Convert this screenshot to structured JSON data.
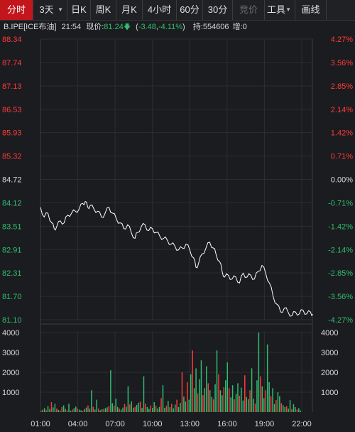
{
  "toolbar": {
    "buttons": [
      {
        "label": "分时",
        "state": "active"
      },
      {
        "label": "3天",
        "state": "dropdown"
      },
      {
        "label": "日K",
        "state": "normal"
      },
      {
        "label": "周K",
        "state": "normal"
      },
      {
        "label": "月K",
        "state": "normal"
      },
      {
        "label": "4小时",
        "state": "normal"
      },
      {
        "label": "60分",
        "state": "normal"
      },
      {
        "label": "30分",
        "state": "normal"
      },
      {
        "label": "竞价",
        "state": "disabled"
      },
      {
        "label": "工具",
        "state": "dropdown"
      },
      {
        "label": "画线",
        "state": "normal"
      }
    ]
  },
  "info": {
    "symbol": "B.IPE[ICE布油]",
    "time": "21:54",
    "price_label": "现价:",
    "price": "81.24",
    "arrow": "🡇",
    "change_open": "(",
    "change": "-3.48",
    "sep": ", ",
    "change_pct": "-4.11%",
    "change_close": ")",
    "hold_label": "持:554606",
    "add_label": "增:0"
  },
  "colors": {
    "background": "#1b1c1f",
    "up": "#ff3a3a",
    "down": "#2fbf71",
    "line": "#ffffff",
    "grid": "#2b2d31"
  },
  "chart_data": {
    "type": "line",
    "price_ticks": [
      "88.34",
      "87.74",
      "87.13",
      "86.53",
      "85.93",
      "85.32",
      "84.72",
      "84.12",
      "83.51",
      "82.91",
      "82.31",
      "81.70",
      "81.10"
    ],
    "pct_ticks": [
      "4.27%",
      "3.56%",
      "2.85%",
      "2.14%",
      "1.42%",
      "0.71%",
      "0.00%",
      "-0.71%",
      "-1.42%",
      "-2.14%",
      "-2.85%",
      "-3.56%",
      "-4.27%"
    ],
    "ylim": [
      81.1,
      88.34
    ],
    "volume_ticks": [
      "4000",
      "3000",
      "2000",
      "1000"
    ],
    "volume_ylim": [
      0,
      4000
    ],
    "x_ticks": [
      "01:00",
      "04:00",
      "07:00",
      "10:00",
      "13:00",
      "16:00",
      "19:00",
      "22:00"
    ],
    "series": [
      {
        "points": [
          [
            0,
            84.0
          ],
          [
            0.3,
            83.75
          ],
          [
            0.6,
            83.85
          ],
          [
            0.9,
            83.6
          ],
          [
            1.1,
            83.45
          ],
          [
            1.3,
            83.5
          ],
          [
            1.6,
            83.65
          ],
          [
            1.9,
            83.6
          ],
          [
            2.2,
            83.8
          ],
          [
            2.5,
            83.85
          ],
          [
            2.8,
            83.9
          ],
          [
            3.1,
            83.95
          ],
          [
            3.4,
            84.1
          ],
          [
            3.6,
            84.15
          ],
          [
            3.8,
            84.0
          ],
          [
            4.0,
            84.05
          ],
          [
            4.3,
            83.95
          ],
          [
            4.6,
            83.9
          ],
          [
            4.9,
            83.75
          ],
          [
            5.2,
            83.85
          ],
          [
            5.5,
            84.0
          ],
          [
            5.8,
            83.85
          ],
          [
            6.1,
            83.7
          ],
          [
            6.4,
            83.6
          ],
          [
            6.7,
            83.45
          ],
          [
            7.0,
            83.55
          ],
          [
            7.3,
            83.35
          ],
          [
            7.6,
            83.2
          ],
          [
            7.8,
            83.35
          ],
          [
            8.1,
            83.5
          ],
          [
            8.4,
            83.55
          ],
          [
            8.7,
            83.4
          ],
          [
            9.0,
            83.45
          ],
          [
            9.3,
            83.35
          ],
          [
            9.6,
            83.25
          ],
          [
            9.9,
            83.2
          ],
          [
            10.2,
            83.15
          ],
          [
            10.5,
            83.05
          ],
          [
            10.8,
            83.0
          ],
          [
            11.1,
            82.9
          ],
          [
            11.4,
            82.95
          ],
          [
            11.7,
            83.05
          ],
          [
            12.0,
            82.9
          ],
          [
            12.3,
            82.7
          ],
          [
            12.5,
            82.45
          ],
          [
            12.7,
            82.55
          ],
          [
            13.0,
            82.8
          ],
          [
            13.3,
            82.95
          ],
          [
            13.6,
            83.1
          ],
          [
            13.9,
            82.95
          ],
          [
            14.1,
            82.8
          ],
          [
            14.4,
            82.6
          ],
          [
            14.6,
            82.35
          ],
          [
            14.8,
            82.2
          ],
          [
            15.1,
            82.25
          ],
          [
            15.4,
            82.15
          ],
          [
            15.7,
            82.2
          ],
          [
            16.0,
            82.05
          ],
          [
            16.3,
            82.3
          ],
          [
            16.6,
            82.2
          ],
          [
            16.9,
            82.25
          ],
          [
            17.2,
            82.15
          ],
          [
            17.5,
            82.35
          ],
          [
            17.8,
            82.5
          ],
          [
            18.1,
            82.3
          ],
          [
            18.4,
            82.05
          ],
          [
            18.7,
            81.7
          ],
          [
            19.0,
            81.5
          ],
          [
            19.3,
            81.3
          ],
          [
            19.6,
            81.4
          ],
          [
            19.9,
            81.3
          ],
          [
            20.2,
            81.2
          ],
          [
            20.5,
            81.3
          ],
          [
            20.8,
            81.25
          ],
          [
            21.1,
            81.35
          ],
          [
            21.4,
            81.25
          ],
          [
            21.7,
            81.3
          ],
          [
            21.9,
            81.24
          ]
        ]
      }
    ],
    "volume": [
      60,
      120,
      200,
      90,
      300,
      150,
      500,
      240,
      420,
      180,
      110,
      80,
      250,
      340,
      160,
      90,
      420,
      70,
      130,
      200,
      280,
      180,
      120,
      90,
      60,
      150,
      230,
      340,
      180,
      1100,
      260,
      130,
      620,
      180,
      90,
      140,
      160,
      200,
      240,
      310,
      2100,
      450,
      330,
      680,
      260,
      180,
      130,
      230,
      410,
      270,
      1300,
      390,
      540,
      220,
      260,
      360,
      470,
      530,
      210,
      1800,
      430,
      250,
      160,
      340,
      210,
      500,
      320,
      180,
      260,
      700,
      1350,
      210,
      320,
      560,
      250,
      420,
      190,
      380,
      620,
      250,
      460,
      2000,
      780,
      530,
      1500,
      620,
      1900,
      3100,
      1200,
      2200,
      940,
      1660,
      2600,
      850,
      1200,
      2300,
      1450,
      1100,
      760,
      640,
      1400,
      3100,
      1900,
      1100,
      850,
      1250,
      1600,
      2500,
      1200,
      740,
      1350,
      650,
      920,
      1450,
      820,
      1230,
      580,
      1850,
      760,
      650,
      1100,
      2200,
      680,
      430,
      1600,
      4000,
      1800,
      1300,
      700,
      1100,
      3400,
      1500,
      800,
      1200,
      400,
      600,
      1000,
      800,
      450,
      350,
      250,
      300,
      180,
      600,
      150,
      400,
      250,
      130,
      200,
      80
    ]
  }
}
